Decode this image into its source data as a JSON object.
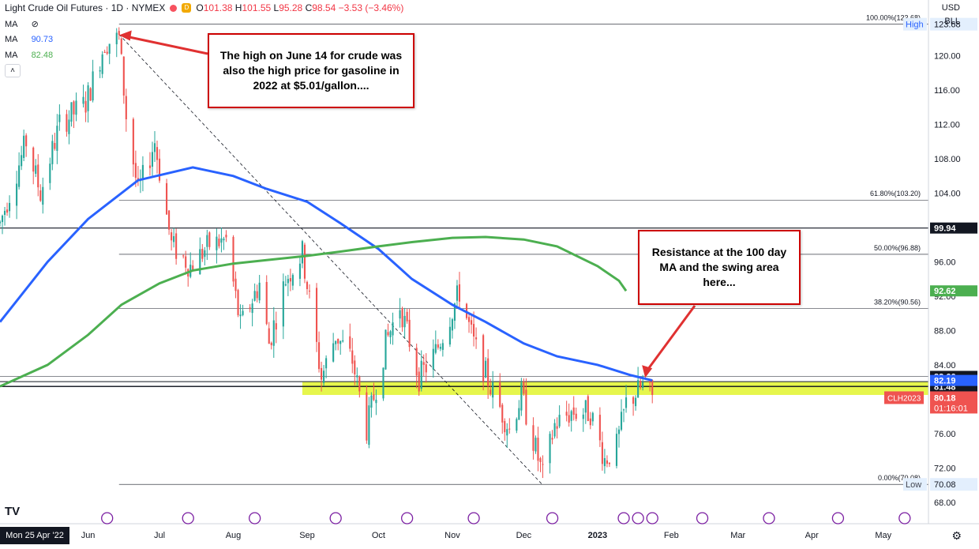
{
  "header": {
    "symbol": "Light Crude Oil Futures · 1D · NYMEX",
    "pill": "D",
    "open_label": "O",
    "open": "101.38",
    "high_label": "H",
    "high": "101.55",
    "low_label": "L",
    "low": "95.28",
    "close_label": "C",
    "close": "98.54",
    "change": "−3.53 (−3.46%)",
    "colors": {
      "up": "#089981",
      "down": "#f23645"
    }
  },
  "indicators": [
    {
      "label": "MA",
      "value": "",
      "icon": "eye-slash-icon",
      "color": "#131722"
    },
    {
      "label": "MA",
      "value": "90.73",
      "color": "#2962ff"
    },
    {
      "label": "MA",
      "value": "82.48",
      "color": "#4caf50"
    }
  ],
  "collapse_glyph": "˄",
  "top_right": {
    "currency": "USD",
    "unit": "BLL"
  },
  "annotations": {
    "high_note": "The high on June 14 for crude was also the high price for gasoline in 2022 at $5.01/gallon....",
    "resistance_note": "Resistance at the 100 day MA and the swing area here..."
  },
  "branding": {
    "logo": "TV"
  },
  "chart_data": {
    "type": "candlestick",
    "title": "Light Crude Oil Futures · 1D · NYMEX",
    "xlabel": "",
    "ylabel": "",
    "ylim": [
      65.5,
      126.5
    ],
    "y_ticks": [
      68,
      72,
      76,
      80,
      84,
      88,
      92,
      96,
      100,
      104,
      108,
      112,
      116,
      120
    ],
    "x_ticks": [
      "Jun",
      "Jul",
      "Aug",
      "Sep",
      "Oct",
      "Nov",
      "Dec",
      "2023",
      "Feb",
      "Mar",
      "Apr",
      "May"
    ],
    "x_cursor_label": "Mon 25 Apr '22",
    "x_range": [
      "2022-04-25",
      "2023-05-20"
    ],
    "grid": false,
    "price_anchors": [
      [
        "2022-04-25",
        100.5
      ],
      [
        "2022-05-06",
        110.0
      ],
      [
        "2022-05-12",
        104.0
      ],
      [
        "2022-05-20",
        112.0
      ],
      [
        "2022-05-31",
        114.5
      ],
      [
        "2022-06-08",
        121.5
      ],
      [
        "2022-06-14",
        122.0
      ],
      [
        "2022-06-17",
        113.0
      ],
      [
        "2022-06-22",
        104.0
      ],
      [
        "2022-06-29",
        110.0
      ],
      [
        "2022-07-06",
        98.0
      ],
      [
        "2022-07-14",
        95.5
      ],
      [
        "2022-07-22",
        98.0
      ],
      [
        "2022-07-29",
        98.5
      ],
      [
        "2022-08-04",
        88.5
      ],
      [
        "2022-08-12",
        93.5
      ],
      [
        "2022-08-16",
        86.5
      ],
      [
        "2022-08-23",
        94.0
      ],
      [
        "2022-08-30",
        97.0
      ],
      [
        "2022-09-07",
        82.5
      ],
      [
        "2022-09-13",
        87.5
      ],
      [
        "2022-09-20",
        84.5
      ],
      [
        "2022-09-26",
        76.5
      ],
      [
        "2022-10-04",
        86.5
      ],
      [
        "2022-10-10",
        91.0
      ],
      [
        "2022-10-18",
        82.5
      ],
      [
        "2022-10-25",
        85.5
      ],
      [
        "2022-11-04",
        92.5
      ],
      [
        "2022-11-10",
        86.5
      ],
      [
        "2022-11-17",
        81.5
      ],
      [
        "2022-11-25",
        76.5
      ],
      [
        "2022-11-30",
        80.5
      ],
      [
        "2022-12-09",
        71.0
      ],
      [
        "2022-12-14",
        77.0
      ],
      [
        "2022-12-21",
        78.5
      ],
      [
        "2022-12-29",
        78.5
      ],
      [
        "2023-01-04",
        73.0
      ],
      [
        "2023-01-09",
        74.5
      ],
      [
        "2023-01-13",
        79.5
      ],
      [
        "2023-01-20",
        81.5
      ],
      [
        "2023-01-24",
        80.18
      ]
    ],
    "series": [
      {
        "name": "MA",
        "value_label": "90.73",
        "points": [
          [
            "2022-04-25",
            89
          ],
          [
            "2022-05-15",
            96
          ],
          [
            "2022-06-01",
            101
          ],
          [
            "2022-06-22",
            105.5
          ],
          [
            "2022-07-15",
            107
          ],
          [
            "2022-08-01",
            106
          ],
          [
            "2022-08-15",
            104.5
          ],
          [
            "2022-09-01",
            103
          ],
          [
            "2022-09-15",
            100.5
          ],
          [
            "2022-10-01",
            97.5
          ],
          [
            "2022-10-15",
            94
          ],
          [
            "2022-11-01",
            91
          ],
          [
            "2022-11-15",
            89
          ],
          [
            "2022-12-01",
            86.5
          ],
          [
            "2022-12-15",
            85
          ],
          [
            "2023-01-01",
            84
          ],
          [
            "2023-01-15",
            82.8
          ],
          [
            "2023-01-24",
            82.19
          ]
        ]
      },
      {
        "name": "MA",
        "value_label": "82.48",
        "points": [
          [
            "2022-04-25",
            81.5
          ],
          [
            "2022-05-15",
            84
          ],
          [
            "2022-06-01",
            87.5
          ],
          [
            "2022-06-15",
            91
          ],
          [
            "2022-07-01",
            93.5
          ],
          [
            "2022-07-15",
            95
          ],
          [
            "2022-08-01",
            95.8
          ],
          [
            "2022-08-15",
            96.2
          ],
          [
            "2022-09-01",
            96.7
          ],
          [
            "2022-09-15",
            97.2
          ],
          [
            "2022-10-01",
            97.8
          ],
          [
            "2022-10-15",
            98.3
          ],
          [
            "2022-11-01",
            98.8
          ],
          [
            "2022-11-15",
            98.9
          ],
          [
            "2022-12-01",
            98.6
          ],
          [
            "2022-12-15",
            97.8
          ],
          [
            "2023-01-01",
            95.5
          ],
          [
            "2023-01-10",
            93.8
          ],
          [
            "2023-01-13",
            92.62
          ]
        ]
      }
    ],
    "horizontal_levels": [
      {
        "value": 123.68,
        "badge": "123.68",
        "tag": "High"
      },
      {
        "value": 103.2,
        "fib": "61.80%(103.20)"
      },
      {
        "value": 99.94,
        "badge": "99.94"
      },
      {
        "value": 96.88,
        "fib": "50.00%(96.88)"
      },
      {
        "value": 90.56,
        "fib": "38.20%(90.56)"
      },
      {
        "value": 82.66,
        "badge": "82.66"
      },
      {
        "value": 81.5,
        "badge": "81.50"
      },
      {
        "value": 81.48,
        "badge": "81.48"
      },
      {
        "value": 70.08,
        "badge": "70.08",
        "tag": "Low",
        "fib": "0.00%(70.08)"
      }
    ],
    "fib_top_label": "100.00%(123.68)",
    "highlight_zone": [
      80.5,
      82.0
    ],
    "last_price": {
      "symbol": "CLH2023",
      "value": "80.18",
      "countdown": "01:16:01"
    },
    "ma_badges": [
      {
        "value": "92.62",
        "color": "#4caf50"
      },
      {
        "value": "82.19",
        "color": "#2962ff"
      }
    ],
    "trendline": [
      [
        "2022-06-14",
        122.5
      ],
      [
        "2022-12-09",
        70.0
      ]
    ]
  }
}
